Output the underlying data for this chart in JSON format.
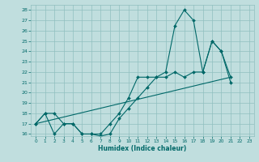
{
  "xlabel": "Humidex (Indice chaleur)",
  "ylabel": "",
  "xlim": [
    -0.5,
    23.5
  ],
  "ylim": [
    15.8,
    28.5
  ],
  "xticks": [
    0,
    1,
    2,
    3,
    4,
    5,
    6,
    7,
    8,
    9,
    10,
    11,
    12,
    13,
    14,
    15,
    16,
    17,
    18,
    19,
    20,
    21,
    22,
    23
  ],
  "yticks": [
    16,
    17,
    18,
    19,
    20,
    21,
    22,
    23,
    24,
    25,
    26,
    27,
    28
  ],
  "bg_color": "#c0dede",
  "grid_color": "#90bfbf",
  "line_color": "#006868",
  "line1_x": [
    0,
    1,
    2,
    3,
    4,
    5,
    6,
    7,
    8,
    9,
    10,
    11,
    12,
    13,
    14,
    15,
    16,
    17,
    18,
    19,
    20,
    21
  ],
  "line1_y": [
    17.0,
    18.0,
    18.0,
    17.0,
    17.0,
    16.0,
    16.0,
    15.8,
    16.0,
    17.5,
    18.5,
    19.5,
    20.5,
    21.5,
    21.5,
    22.0,
    21.5,
    22.0,
    22.0,
    25.0,
    24.0,
    21.5
  ],
  "line2_x": [
    0,
    1,
    2,
    3,
    4,
    5,
    6,
    7,
    8,
    9,
    10,
    11,
    12,
    13,
    14,
    15,
    16,
    17,
    18,
    19,
    20,
    21
  ],
  "line2_y": [
    17.0,
    18.0,
    16.0,
    17.0,
    17.0,
    16.0,
    16.0,
    16.0,
    17.0,
    18.0,
    19.5,
    21.5,
    21.5,
    21.5,
    22.0,
    26.5,
    28.0,
    27.0,
    22.0,
    25.0,
    24.0,
    21.0
  ],
  "line3_x": [
    0,
    21
  ],
  "line3_y": [
    17.0,
    21.5
  ]
}
